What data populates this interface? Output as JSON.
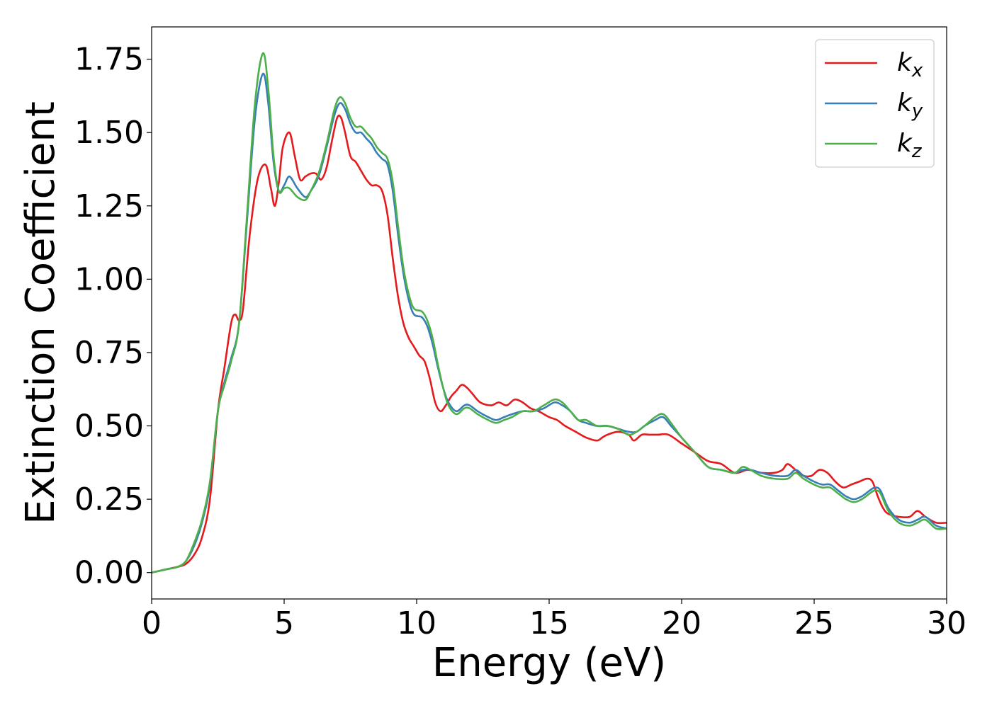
{
  "chart_data": {
    "type": "line",
    "title": "",
    "xlabel": "Energy (eV)",
    "ylabel": "Extinction Coefficient",
    "xlim": [
      0,
      30
    ],
    "ylim": [
      -0.09,
      1.86
    ],
    "xticks": [
      0,
      5,
      10,
      15,
      20,
      25,
      30
    ],
    "xtick_labels": [
      "0",
      "5",
      "10",
      "15",
      "20",
      "25",
      "30"
    ],
    "yticks": [
      0.0,
      0.25,
      0.5,
      0.75,
      1.0,
      1.25,
      1.5,
      1.75
    ],
    "ytick_labels": [
      "0.00",
      "0.25",
      "0.50",
      "0.75",
      "1.00",
      "1.25",
      "1.50",
      "1.75"
    ],
    "grid": false,
    "legend_position": "top-right",
    "series": [
      {
        "name": "k_x",
        "label_base": "k",
        "label_sub": "x",
        "color": "#e41a1c",
        "x": [
          0,
          0.5,
          1.0,
          1.3,
          1.6,
          1.9,
          2.2,
          2.5,
          2.75,
          3.0,
          3.15,
          3.3,
          3.45,
          3.7,
          4.0,
          4.3,
          4.5,
          4.65,
          4.8,
          4.95,
          5.2,
          5.4,
          5.6,
          5.8,
          6.0,
          6.2,
          6.4,
          6.6,
          6.8,
          7.0,
          7.15,
          7.3,
          7.5,
          7.7,
          7.9,
          8.1,
          8.3,
          8.5,
          8.7,
          8.9,
          9.1,
          9.3,
          9.5,
          9.7,
          9.9,
          10.1,
          10.3,
          10.5,
          10.7,
          10.9,
          11.1,
          11.3,
          11.5,
          11.7,
          11.9,
          12.1,
          12.4,
          12.8,
          13.1,
          13.4,
          13.7,
          14.0,
          14.3,
          14.6,
          15.0,
          15.3,
          15.6,
          16.0,
          16.4,
          16.8,
          17.0,
          17.2,
          17.6,
          18.0,
          18.2,
          18.5,
          18.8,
          19.1,
          19.5,
          20.0,
          20.5,
          21.0,
          21.5,
          22.0,
          22.5,
          23.0,
          23.5,
          23.8,
          24.0,
          24.3,
          24.6,
          24.9,
          25.2,
          25.5,
          25.8,
          26.1,
          26.4,
          26.7,
          27.0,
          27.2,
          27.4,
          27.6,
          27.8,
          28.2,
          28.6,
          28.9,
          29.2,
          29.6,
          30.0
        ],
        "y": [
          0,
          0.01,
          0.02,
          0.03,
          0.06,
          0.12,
          0.25,
          0.55,
          0.7,
          0.85,
          0.88,
          0.86,
          0.9,
          1.15,
          1.34,
          1.39,
          1.31,
          1.25,
          1.33,
          1.45,
          1.5,
          1.42,
          1.34,
          1.35,
          1.36,
          1.36,
          1.34,
          1.38,
          1.47,
          1.55,
          1.55,
          1.5,
          1.42,
          1.4,
          1.37,
          1.34,
          1.32,
          1.32,
          1.3,
          1.22,
          1.07,
          0.94,
          0.85,
          0.8,
          0.77,
          0.74,
          0.72,
          0.66,
          0.58,
          0.55,
          0.57,
          0.6,
          0.62,
          0.64,
          0.63,
          0.61,
          0.58,
          0.57,
          0.58,
          0.57,
          0.59,
          0.58,
          0.56,
          0.55,
          0.53,
          0.52,
          0.5,
          0.48,
          0.46,
          0.45,
          0.46,
          0.47,
          0.48,
          0.47,
          0.45,
          0.47,
          0.47,
          0.47,
          0.47,
          0.44,
          0.41,
          0.38,
          0.37,
          0.34,
          0.35,
          0.34,
          0.34,
          0.35,
          0.37,
          0.35,
          0.33,
          0.33,
          0.35,
          0.34,
          0.31,
          0.29,
          0.3,
          0.31,
          0.32,
          0.31,
          0.26,
          0.22,
          0.2,
          0.19,
          0.19,
          0.21,
          0.19,
          0.17,
          0.17
        ]
      },
      {
        "name": "k_y",
        "label_base": "k",
        "label_sub": "y",
        "color": "#377eb8",
        "x": [
          0,
          0.5,
          1.0,
          1.3,
          1.6,
          1.9,
          2.2,
          2.5,
          2.75,
          3.0,
          3.3,
          3.6,
          3.9,
          4.2,
          4.4,
          4.6,
          4.8,
          5.0,
          5.2,
          5.5,
          5.8,
          6.0,
          6.3,
          6.6,
          6.9,
          7.1,
          7.3,
          7.5,
          7.7,
          7.9,
          8.1,
          8.3,
          8.5,
          8.7,
          8.9,
          9.1,
          9.3,
          9.5,
          9.7,
          9.9,
          10.2,
          10.4,
          10.6,
          10.8,
          11.0,
          11.2,
          11.5,
          11.8,
          12.0,
          12.3,
          12.7,
          13.0,
          13.3,
          13.6,
          14.0,
          14.4,
          14.8,
          15.2,
          15.5,
          15.8,
          16.1,
          16.4,
          16.8,
          17.2,
          17.6,
          18.0,
          18.3,
          18.6,
          19.0,
          19.3,
          19.6,
          20.0,
          20.5,
          21.0,
          21.5,
          22.0,
          22.3,
          22.6,
          23.0,
          23.5,
          24.0,
          24.3,
          24.6,
          25.0,
          25.3,
          25.6,
          25.9,
          26.2,
          26.5,
          26.8,
          27.1,
          27.3,
          27.5,
          27.8,
          28.2,
          28.6,
          28.9,
          29.2,
          29.6,
          30.0
        ],
        "y": [
          0,
          0.01,
          0.02,
          0.04,
          0.09,
          0.17,
          0.3,
          0.55,
          0.65,
          0.73,
          0.85,
          1.2,
          1.55,
          1.7,
          1.6,
          1.4,
          1.3,
          1.32,
          1.35,
          1.31,
          1.28,
          1.3,
          1.35,
          1.45,
          1.56,
          1.6,
          1.58,
          1.53,
          1.5,
          1.5,
          1.48,
          1.46,
          1.43,
          1.41,
          1.39,
          1.3,
          1.15,
          1.02,
          0.93,
          0.88,
          0.87,
          0.84,
          0.78,
          0.7,
          0.63,
          0.58,
          0.55,
          0.57,
          0.57,
          0.55,
          0.53,
          0.52,
          0.53,
          0.54,
          0.55,
          0.55,
          0.56,
          0.58,
          0.57,
          0.55,
          0.52,
          0.51,
          0.5,
          0.5,
          0.49,
          0.48,
          0.48,
          0.5,
          0.52,
          0.53,
          0.5,
          0.46,
          0.41,
          0.36,
          0.35,
          0.34,
          0.35,
          0.35,
          0.34,
          0.33,
          0.33,
          0.35,
          0.33,
          0.31,
          0.3,
          0.3,
          0.28,
          0.26,
          0.25,
          0.26,
          0.28,
          0.29,
          0.28,
          0.22,
          0.18,
          0.17,
          0.18,
          0.19,
          0.16,
          0.15
        ]
      },
      {
        "name": "k_z",
        "label_base": "k",
        "label_sub": "z",
        "color": "#4daf4a",
        "x": [
          0,
          0.5,
          1.0,
          1.3,
          1.6,
          1.9,
          2.2,
          2.5,
          2.75,
          3.0,
          3.3,
          3.6,
          3.9,
          4.2,
          4.4,
          4.6,
          4.8,
          5.0,
          5.2,
          5.5,
          5.8,
          6.0,
          6.3,
          6.6,
          6.9,
          7.1,
          7.3,
          7.5,
          7.7,
          7.9,
          8.1,
          8.3,
          8.5,
          8.7,
          8.9,
          9.1,
          9.3,
          9.5,
          9.7,
          9.9,
          10.2,
          10.4,
          10.6,
          10.8,
          11.0,
          11.2,
          11.5,
          11.8,
          12.0,
          12.3,
          12.7,
          13.0,
          13.3,
          13.6,
          14.0,
          14.4,
          14.8,
          15.2,
          15.5,
          15.8,
          16.1,
          16.4,
          16.8,
          17.2,
          17.6,
          18.0,
          18.3,
          18.6,
          19.0,
          19.3,
          19.6,
          20.0,
          20.5,
          21.0,
          21.5,
          22.0,
          22.3,
          22.6,
          23.0,
          23.5,
          24.0,
          24.3,
          24.6,
          25.0,
          25.3,
          25.6,
          25.9,
          26.2,
          26.5,
          26.8,
          27.1,
          27.3,
          27.5,
          27.8,
          28.2,
          28.6,
          28.9,
          29.2,
          29.6,
          30.0
        ],
        "y": [
          0,
          0.01,
          0.02,
          0.04,
          0.1,
          0.18,
          0.31,
          0.55,
          0.64,
          0.72,
          0.85,
          1.22,
          1.6,
          1.77,
          1.65,
          1.42,
          1.3,
          1.31,
          1.31,
          1.28,
          1.27,
          1.3,
          1.36,
          1.46,
          1.58,
          1.62,
          1.6,
          1.55,
          1.52,
          1.52,
          1.5,
          1.48,
          1.45,
          1.43,
          1.41,
          1.33,
          1.18,
          1.04,
          0.95,
          0.9,
          0.89,
          0.86,
          0.8,
          0.71,
          0.63,
          0.57,
          0.54,
          0.56,
          0.56,
          0.54,
          0.52,
          0.51,
          0.52,
          0.53,
          0.55,
          0.55,
          0.57,
          0.59,
          0.58,
          0.55,
          0.52,
          0.52,
          0.5,
          0.5,
          0.49,
          0.47,
          0.48,
          0.5,
          0.53,
          0.54,
          0.51,
          0.46,
          0.41,
          0.36,
          0.35,
          0.34,
          0.36,
          0.35,
          0.33,
          0.32,
          0.32,
          0.34,
          0.32,
          0.3,
          0.29,
          0.29,
          0.27,
          0.25,
          0.24,
          0.25,
          0.27,
          0.28,
          0.27,
          0.21,
          0.17,
          0.16,
          0.17,
          0.18,
          0.15,
          0.15
        ]
      }
    ]
  }
}
